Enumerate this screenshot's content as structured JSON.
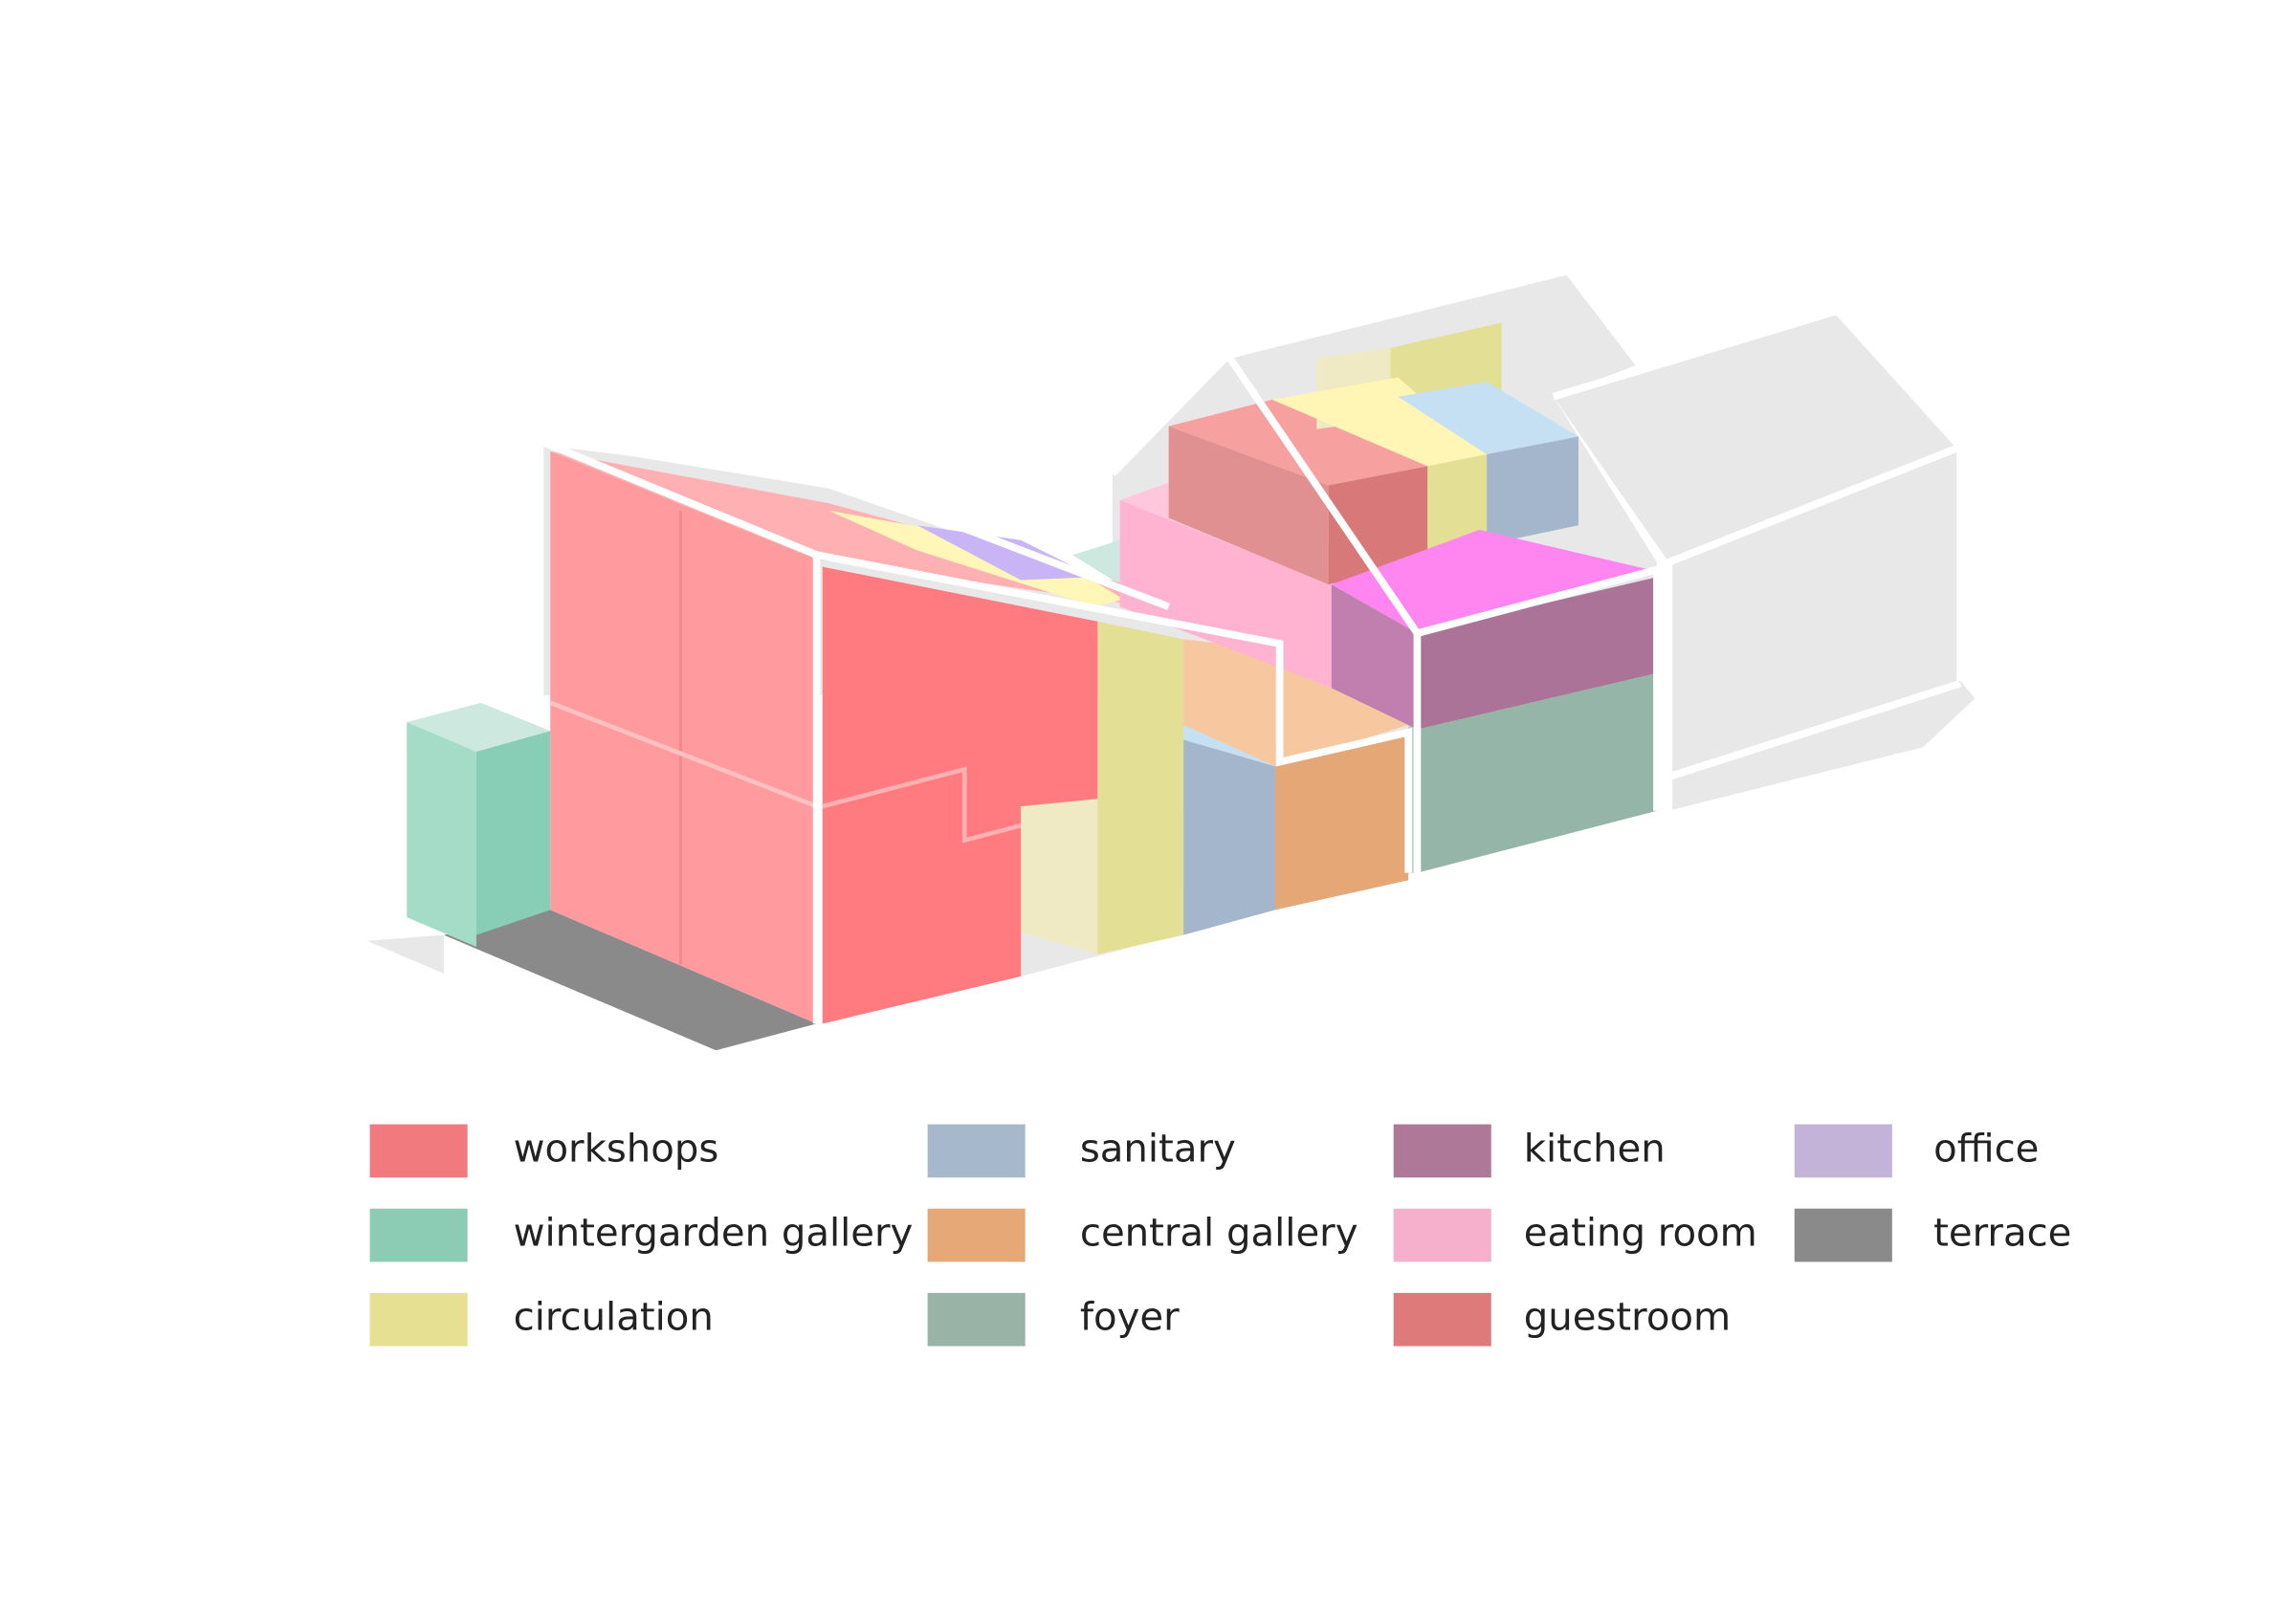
{
  "legend": [
    {
      "label": "workshops",
      "color": "#f07a7e"
    },
    {
      "label": "wintergarden gallery",
      "color": "#8ccbb4"
    },
    {
      "label": "circulation",
      "color": "#e6e092"
    },
    {
      "label": "sanitary",
      "color": "#a6b8cb"
    },
    {
      "label": "central gallery",
      "color": "#e6a876"
    },
    {
      "label": "foyer",
      "color": "#99b4a7"
    },
    {
      "label": "kitchen",
      "color": "#ae7899"
    },
    {
      "label": "eating room",
      "color": "#f6b0cb"
    },
    {
      "label": "guestroom",
      "color": "#de7a7a"
    },
    {
      "label": "office",
      "color": "#c4b3d8"
    },
    {
      "label": "terrace",
      "color": "#8a8a8a"
    }
  ]
}
